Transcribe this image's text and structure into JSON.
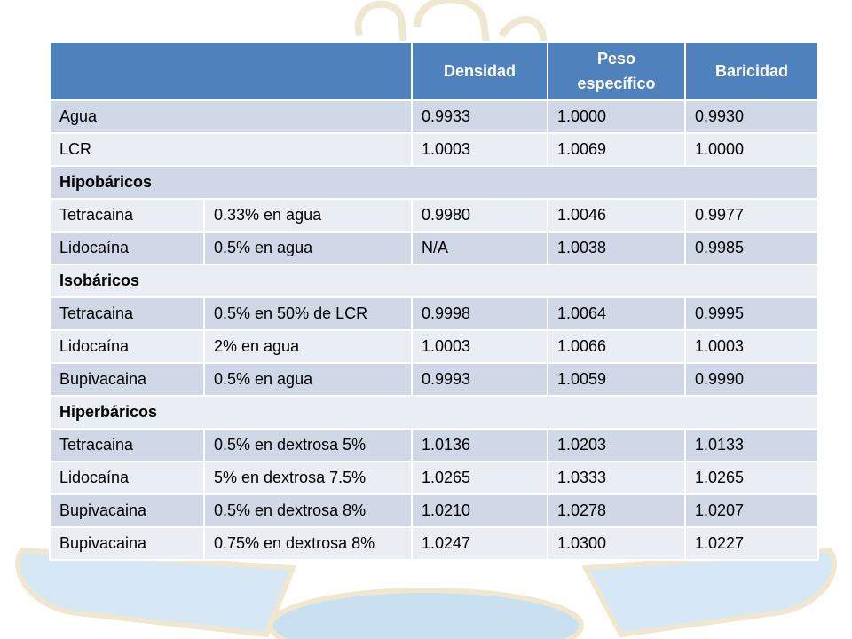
{
  "table": {
    "headers": [
      "",
      "Densidad",
      "Peso específico",
      "Baricidad"
    ],
    "rows": [
      {
        "type": "plain",
        "name": "Agua",
        "densidad": "0.9933",
        "peso": "1.0000",
        "baricidad": "0.9930"
      },
      {
        "type": "plain",
        "name": "LCR",
        "densidad": "1.0003",
        "peso": "1.0069",
        "baricidad": "1.0000"
      },
      {
        "type": "section",
        "label": "Hipobáricos"
      },
      {
        "type": "drug",
        "name": "Tetracaina",
        "solution": "0.33% en agua",
        "densidad": "0.9980",
        "peso": "1.0046",
        "baricidad": "0.9977"
      },
      {
        "type": "drug",
        "name": "Lidocaína",
        "solution": "0.5% en agua",
        "densidad": "N/A",
        "peso": "1.0038",
        "baricidad": "0.9985"
      },
      {
        "type": "section",
        "label": "Isobáricos"
      },
      {
        "type": "drug",
        "name": "Tetracaina",
        "solution": "0.5% en 50% de LCR",
        "densidad": "0.9998",
        "peso": "1.0064",
        "baricidad": "0.9995"
      },
      {
        "type": "drug",
        "name": "Lidocaína",
        "solution": "2% en agua",
        "densidad": "1.0003",
        "peso": "1.0066",
        "baricidad": "1.0003"
      },
      {
        "type": "drug",
        "name": "Bupivacaina",
        "solution": "0.5% en agua",
        "densidad": "0.9993",
        "peso": "1.0059",
        "baricidad": "0.9990"
      },
      {
        "type": "section",
        "label": "Hiperbáricos"
      },
      {
        "type": "drug",
        "name": "Tetracaina",
        "solution": "0.5% en dextrosa 5%",
        "densidad": "1.0136",
        "peso": "1.0203",
        "baricidad": "1.0133"
      },
      {
        "type": "drug",
        "name": "Lidocaína",
        "solution": "5% en dextrosa 7.5%",
        "densidad": "1.0265",
        "peso": "1.0333",
        "baricidad": "1.0265"
      },
      {
        "type": "drug",
        "name": "Bupivacaina",
        "solution": "0.5% en dextrosa 8%",
        "densidad": "1.0210",
        "peso": "1.0278",
        "baricidad": "1.0207"
      },
      {
        "type": "drug",
        "name": "Bupivacaina",
        "solution": "0.75% en dextrosa 8%",
        "densidad": "1.0247",
        "peso": "1.0300",
        "baricidad": "1.0227"
      }
    ]
  },
  "colors": {
    "header_bg": "#4f81bd",
    "row_odd": "#d0d8e8",
    "row_even": "#e9edf4",
    "art_fill": "#d4e6f3",
    "art_stroke": "#f2ecd8"
  }
}
